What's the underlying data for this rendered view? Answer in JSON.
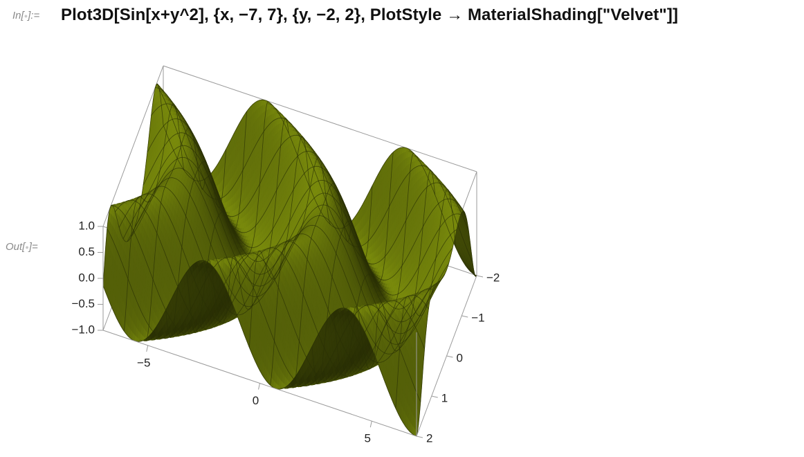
{
  "cell": {
    "in_label_prefix": "In[",
    "in_label_suffix": "]:=",
    "out_label_prefix": "Out[",
    "out_label_suffix": "]=",
    "input_code": "Plot3D[Sin[x+y^2], {x, −7, 7}, {y, −2, 2}, PlotStyle → MaterialShading[\"Velvet\"]]"
  },
  "chart_data": {
    "type": "surface3d",
    "function": "Sin[x+y^2]",
    "x_range": [
      -7,
      7
    ],
    "y_range": [
      -2,
      2
    ],
    "z_range": [
      -1,
      1
    ],
    "x_ticks": [
      "−5",
      "0",
      "5"
    ],
    "y_ticks": [
      "−2",
      "−1",
      "0",
      "1",
      "2"
    ],
    "z_ticks": [
      "−1.0",
      "−0.5",
      "0.0",
      "0.5",
      "1.0"
    ],
    "surface_color": "#6b7a0c",
    "surface_style": "Velvet"
  }
}
